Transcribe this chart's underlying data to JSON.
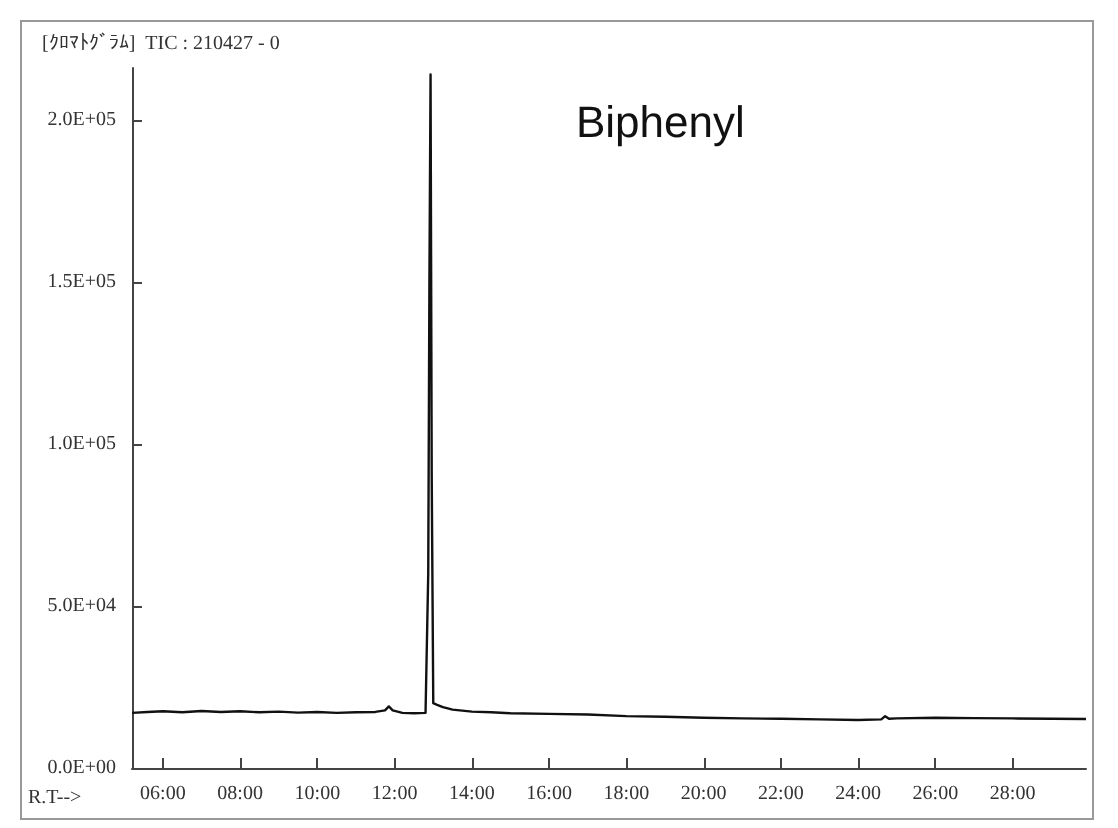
{
  "chart_data": {
    "type": "line",
    "title": "[ｸﾛﾏﾄｸﾞﾗﾑ]  TIC : 210427 - 0",
    "xlabel": "R.T-->",
    "annotations": [
      "Biphenyl"
    ],
    "x": [
      5.2,
      5.6,
      6.0,
      6.5,
      7.0,
      7.5,
      8.0,
      8.5,
      9.0,
      9.5,
      10.0,
      10.5,
      11.0,
      11.5,
      11.75,
      11.85,
      11.95,
      12.2,
      12.5,
      12.8,
      12.87,
      12.9,
      12.93,
      12.96,
      13.0,
      13.1,
      13.25,
      13.5,
      14.0,
      14.5,
      15.0,
      16.0,
      17.0,
      18.0,
      19.0,
      20.0,
      21.0,
      22.0,
      23.0,
      24.0,
      24.6,
      24.7,
      24.8,
      25.0,
      26.0,
      27.0,
      28.0,
      29.0,
      29.9
    ],
    "series": [
      {
        "color": "#111111",
        "values": [
          17000,
          17300,
          17500,
          17200,
          17600,
          17300,
          17500,
          17200,
          17400,
          17100,
          17300,
          17000,
          17200,
          17300,
          17800,
          19000,
          17800,
          17000,
          16900,
          17000,
          60000,
          150000,
          214000,
          90000,
          20000,
          19500,
          18800,
          18000,
          17400,
          17200,
          16900,
          16700,
          16500,
          16000,
          15800,
          15500,
          15300,
          15200,
          15000,
          14800,
          15000,
          16000,
          15200,
          15300,
          15500,
          15400,
          15300,
          15200,
          15100
        ]
      }
    ],
    "xlim": [
      5.2,
      29.9
    ],
    "xticks": [
      {
        "value": 6,
        "label": "06:00"
      },
      {
        "value": 8,
        "label": "08:00"
      },
      {
        "value": 10,
        "label": "10:00"
      },
      {
        "value": 12,
        "label": "12:00"
      },
      {
        "value": 14,
        "label": "14:00"
      },
      {
        "value": 16,
        "label": "16:00"
      },
      {
        "value": 18,
        "label": "18:00"
      },
      {
        "value": 20,
        "label": "20:00"
      },
      {
        "value": 22,
        "label": "22:00"
      },
      {
        "value": 24,
        "label": "24:00"
      },
      {
        "value": 26,
        "label": "26:00"
      },
      {
        "value": 28,
        "label": "28:00"
      }
    ],
    "ylim": [
      0,
      216000
    ],
    "yticks": [
      {
        "value": 0,
        "label": "0.0E+00"
      },
      {
        "value": 50000,
        "label": "5.0E+04"
      },
      {
        "value": 100000,
        "label": "1.0E+05"
      },
      {
        "value": 150000,
        "label": "1.5E+05"
      },
      {
        "value": 200000,
        "label": "2.0E+05"
      }
    ],
    "grid": false,
    "marker": "none",
    "line_style": "solid"
  }
}
